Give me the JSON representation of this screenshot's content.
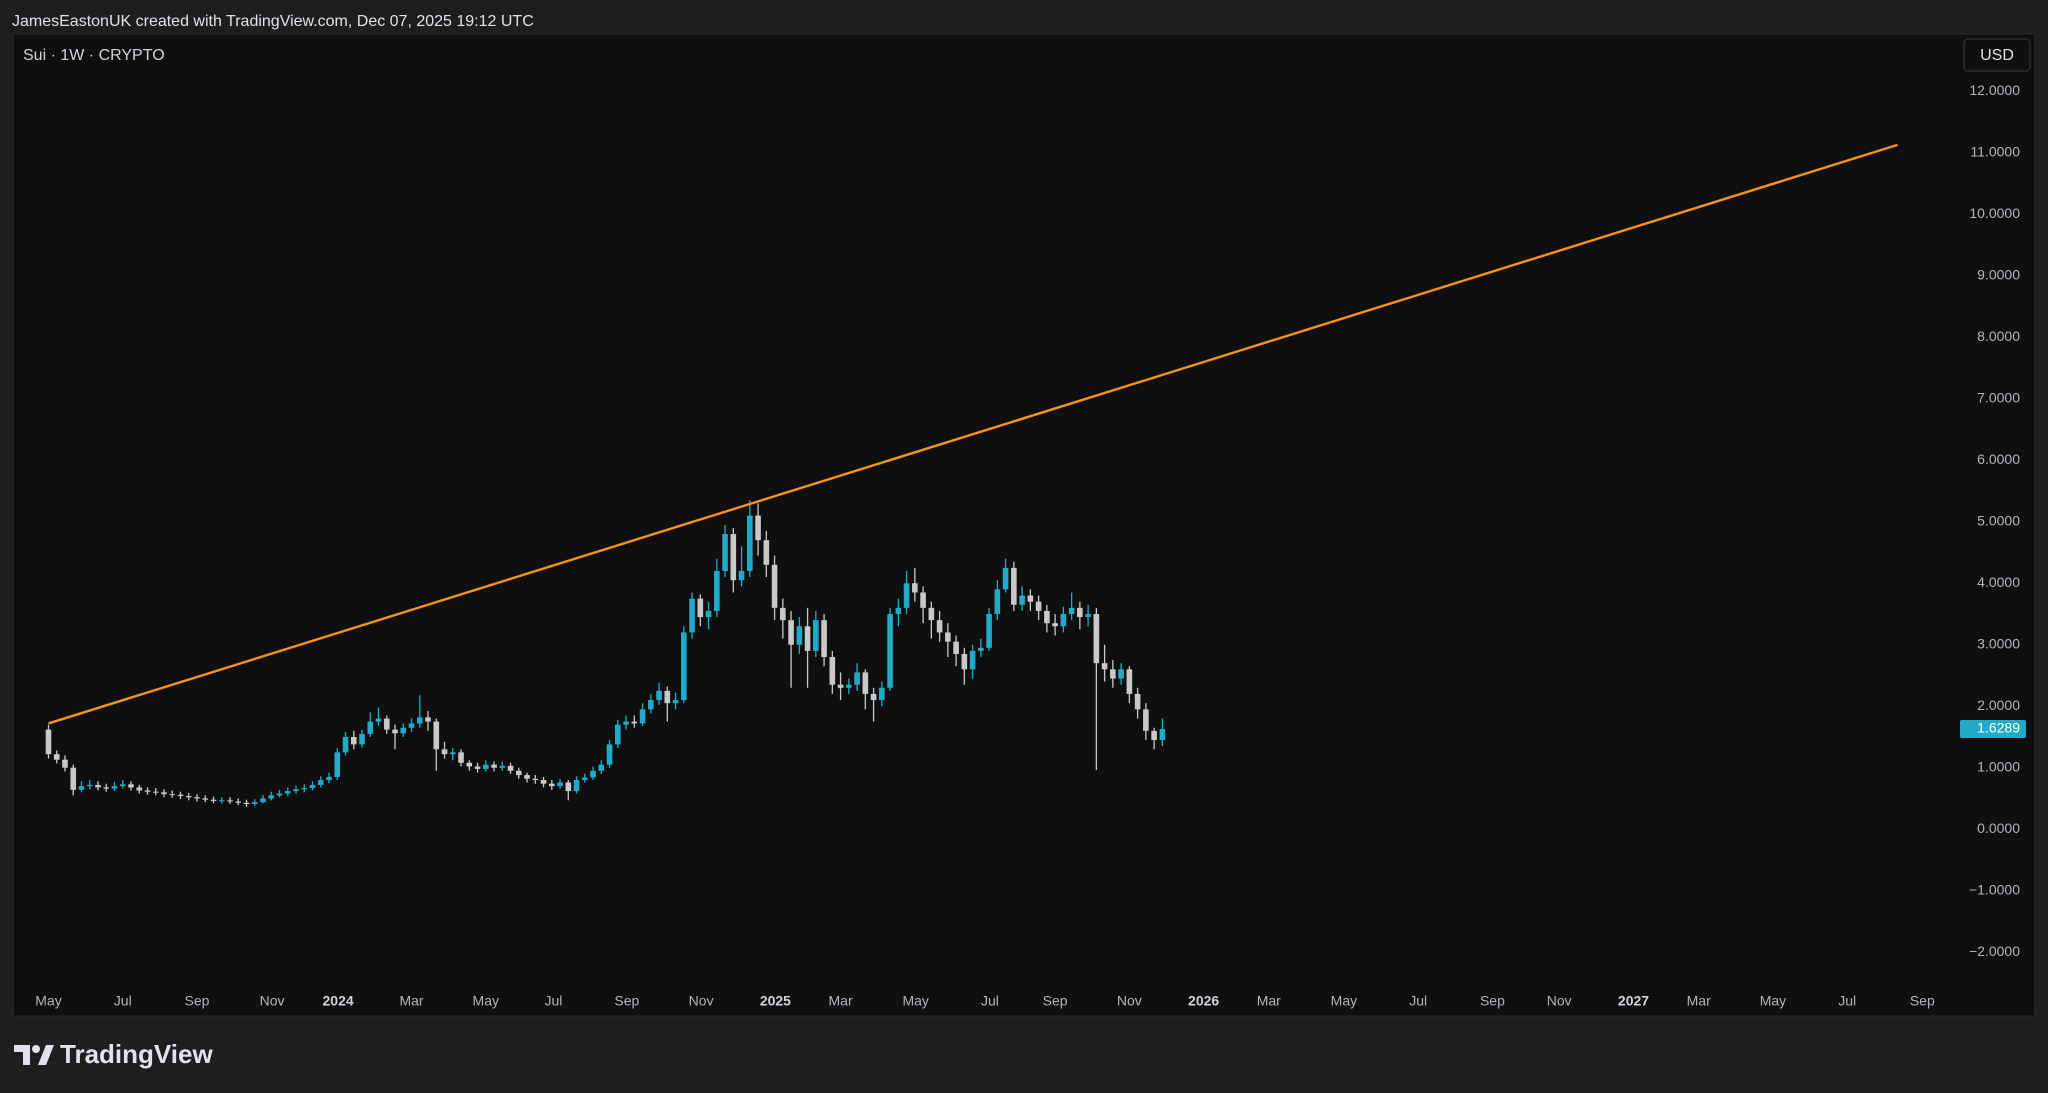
{
  "header": "JamesEastonUK created with TradingView.com, Dec 07, 2025 19:12 UTC",
  "footer": {
    "brand": "TradingView"
  },
  "chart_data": {
    "type": "candlestick",
    "title": "Sui · 1W · CRYPTO",
    "currency": "USD",
    "up_color": "#22abc9",
    "down_color": "#c9c9c9",
    "open": [
      1.62,
      1.22,
      1.13,
      1.0,
      0.64,
      0.7,
      0.72,
      0.68,
      0.66,
      0.7,
      0.73,
      0.68,
      0.63,
      0.61,
      0.6,
      0.57,
      0.56,
      0.54,
      0.52,
      0.5,
      0.48,
      0.46,
      0.47,
      0.45,
      0.43,
      0.41,
      0.44,
      0.5,
      0.55,
      0.58,
      0.62,
      0.65,
      0.67,
      0.72,
      0.8,
      0.85,
      1.25,
      1.5,
      1.38,
      1.55,
      1.75,
      1.8,
      1.62,
      1.56,
      1.65,
      1.72,
      1.82,
      1.75,
      1.3,
      1.22,
      1.25,
      1.08,
      1.02,
      0.98,
      1.05,
      1.0,
      1.03,
      0.95,
      0.88,
      0.82,
      0.8,
      0.74,
      0.7,
      0.76,
      0.62,
      0.8,
      0.84,
      0.95,
      1.05,
      1.38,
      1.7,
      1.75,
      1.72,
      1.95,
      2.1,
      2.25,
      2.05,
      2.1,
      3.2,
      3.75,
      3.45,
      3.55,
      4.2,
      4.8,
      4.05,
      4.2,
      5.1,
      4.7,
      4.3,
      3.6,
      3.4,
      3.0,
      3.3,
      2.9,
      3.4,
      2.8,
      2.35,
      2.3,
      2.35,
      2.55,
      2.2,
      2.1,
      2.3,
      3.5,
      3.6,
      4.0,
      3.85,
      3.6,
      3.4,
      3.2,
      3.05,
      2.85,
      2.6,
      2.9,
      2.95,
      3.5,
      3.9,
      4.25,
      3.65,
      3.8,
      3.7,
      3.55,
      3.35,
      3.3,
      3.5,
      3.6,
      3.45,
      3.5,
      2.7,
      2.6,
      2.45,
      2.6,
      2.2,
      1.95,
      1.6,
      1.45
    ],
    "high": [
      1.7,
      1.28,
      1.2,
      1.05,
      0.78,
      0.8,
      0.78,
      0.74,
      0.77,
      0.8,
      0.78,
      0.72,
      0.68,
      0.67,
      0.65,
      0.63,
      0.61,
      0.59,
      0.57,
      0.55,
      0.53,
      0.52,
      0.52,
      0.5,
      0.48,
      0.49,
      0.56,
      0.61,
      0.64,
      0.68,
      0.71,
      0.73,
      0.78,
      0.86,
      0.92,
      1.32,
      1.58,
      1.6,
      1.62,
      1.9,
      1.98,
      1.85,
      1.7,
      1.72,
      1.8,
      2.18,
      1.92,
      1.8,
      1.42,
      1.32,
      1.3,
      1.12,
      1.08,
      1.12,
      1.1,
      1.1,
      1.08,
      1.0,
      0.92,
      0.88,
      0.85,
      0.8,
      0.82,
      0.8,
      0.86,
      0.9,
      1.02,
      1.12,
      1.45,
      1.78,
      1.85,
      1.85,
      2.05,
      2.2,
      2.38,
      2.32,
      2.22,
      3.3,
      3.85,
      3.82,
      3.7,
      4.4,
      4.95,
      4.9,
      4.6,
      5.35,
      5.3,
      4.85,
      4.45,
      3.75,
      3.55,
      3.45,
      3.6,
      3.55,
      3.5,
      2.9,
      2.55,
      2.45,
      2.7,
      2.6,
      2.3,
      2.4,
      3.6,
      3.75,
      4.2,
      4.25,
      3.95,
      3.7,
      3.55,
      3.35,
      3.15,
      2.95,
      3.0,
      3.1,
      3.6,
      4.05,
      4.4,
      4.35,
      3.95,
      3.9,
      3.8,
      3.65,
      3.5,
      3.62,
      3.85,
      3.7,
      3.65,
      3.6,
      3.0,
      2.75,
      2.7,
      2.65,
      2.3,
      2.05,
      1.65,
      1.8
    ],
    "low": [
      1.15,
      1.07,
      0.94,
      0.55,
      0.6,
      0.65,
      0.63,
      0.61,
      0.62,
      0.66,
      0.63,
      0.58,
      0.56,
      0.55,
      0.52,
      0.51,
      0.49,
      0.47,
      0.45,
      0.44,
      0.42,
      0.42,
      0.41,
      0.39,
      0.36,
      0.38,
      0.42,
      0.47,
      0.52,
      0.54,
      0.58,
      0.6,
      0.63,
      0.68,
      0.75,
      0.8,
      1.2,
      1.3,
      1.33,
      1.5,
      1.68,
      1.55,
      1.3,
      1.5,
      1.58,
      1.65,
      1.6,
      0.95,
      1.15,
      1.12,
      1.02,
      0.95,
      0.92,
      0.94,
      0.94,
      0.95,
      0.9,
      0.82,
      0.76,
      0.74,
      0.68,
      0.64,
      0.66,
      0.47,
      0.58,
      0.76,
      0.8,
      0.9,
      1.0,
      1.32,
      1.62,
      1.65,
      1.68,
      1.88,
      2.02,
      1.75,
      1.95,
      2.05,
      3.1,
      3.3,
      3.25,
      3.45,
      4.1,
      3.85,
      3.95,
      4.1,
      4.45,
      4.1,
      3.4,
      3.1,
      2.3,
      2.85,
      2.3,
      2.8,
      2.65,
      2.2,
      2.1,
      2.2,
      2.25,
      1.95,
      1.75,
      2.0,
      2.25,
      3.3,
      3.5,
      3.7,
      3.35,
      3.1,
      3.05,
      2.8,
      2.65,
      2.35,
      2.45,
      2.8,
      2.9,
      3.4,
      3.85,
      3.55,
      3.55,
      3.55,
      3.4,
      3.2,
      3.15,
      3.2,
      3.4,
      3.25,
      3.3,
      0.96,
      2.4,
      2.3,
      2.35,
      2.05,
      1.8,
      1.45,
      1.3,
      1.35
    ],
    "close": [
      1.22,
      1.13,
      1.0,
      0.64,
      0.7,
      0.72,
      0.68,
      0.66,
      0.7,
      0.73,
      0.68,
      0.63,
      0.61,
      0.6,
      0.57,
      0.56,
      0.54,
      0.52,
      0.5,
      0.48,
      0.46,
      0.47,
      0.45,
      0.43,
      0.41,
      0.44,
      0.5,
      0.55,
      0.58,
      0.62,
      0.65,
      0.67,
      0.72,
      0.8,
      0.85,
      1.25,
      1.5,
      1.38,
      1.55,
      1.75,
      1.8,
      1.62,
      1.56,
      1.65,
      1.72,
      1.82,
      1.75,
      1.3,
      1.22,
      1.25,
      1.08,
      1.02,
      0.98,
      1.05,
      1.0,
      1.03,
      0.95,
      0.88,
      0.82,
      0.8,
      0.74,
      0.7,
      0.76,
      0.62,
      0.8,
      0.84,
      0.95,
      1.05,
      1.38,
      1.7,
      1.75,
      1.72,
      1.95,
      2.1,
      2.25,
      2.05,
      2.1,
      3.2,
      3.75,
      3.45,
      3.55,
      4.2,
      4.8,
      4.05,
      4.2,
      5.1,
      4.7,
      4.3,
      3.6,
      3.4,
      3.0,
      3.3,
      2.9,
      3.4,
      2.8,
      2.35,
      2.3,
      2.35,
      2.55,
      2.2,
      2.1,
      2.3,
      3.5,
      3.6,
      4.0,
      3.85,
      3.6,
      3.4,
      3.2,
      3.05,
      2.85,
      2.6,
      2.9,
      2.95,
      3.5,
      3.9,
      4.25,
      3.65,
      3.8,
      3.7,
      3.55,
      3.35,
      3.3,
      3.5,
      3.6,
      3.45,
      3.5,
      2.7,
      2.6,
      2.45,
      2.6,
      2.2,
      1.95,
      1.6,
      1.45,
      1.6289
    ],
    "last_price": 1.6289,
    "trendline": {
      "x": [
        0,
        224.1
      ],
      "y": [
        1.72,
        11.13
      ],
      "color": "#f7931a"
    },
    "xlim": [
      -4.3,
      230.7
    ],
    "ylim": [
      -2.55,
      12.77
    ],
    "yticks": [
      {
        "value": 12,
        "label": "12.0000"
      },
      {
        "value": 11,
        "label": "11.0000"
      },
      {
        "value": 10,
        "label": "10.0000"
      },
      {
        "value": 9,
        "label": "9.0000"
      },
      {
        "value": 8,
        "label": "8.0000"
      },
      {
        "value": 7,
        "label": "7.0000"
      },
      {
        "value": 6,
        "label": "6.0000"
      },
      {
        "value": 5,
        "label": "5.0000"
      },
      {
        "value": 4,
        "label": "4.0000"
      },
      {
        "value": 3,
        "label": "3.0000"
      },
      {
        "value": 2,
        "label": "2.0000"
      },
      {
        "value": 1,
        "label": "1.0000"
      },
      {
        "value": 0,
        "label": "0.0000"
      },
      {
        "value": -1,
        "label": "−1.0000"
      },
      {
        "value": -2,
        "label": "−2.0000"
      }
    ],
    "xticks": [
      {
        "value": 0,
        "label": "May"
      },
      {
        "value": 9.0,
        "label": "Jul"
      },
      {
        "value": 18.0,
        "label": "Sep"
      },
      {
        "value": 27.1,
        "label": "Nov"
      },
      {
        "value": 35.1,
        "label": "2024"
      },
      {
        "value": 44.0,
        "label": "Mar"
      },
      {
        "value": 53.0,
        "label": "May"
      },
      {
        "value": 61.2,
        "label": "Jul"
      },
      {
        "value": 70.1,
        "label": "Sep"
      },
      {
        "value": 79.1,
        "label": "Nov"
      },
      {
        "value": 88.1,
        "label": "2025"
      },
      {
        "value": 96.0,
        "label": "Mar"
      },
      {
        "value": 105.1,
        "label": "May"
      },
      {
        "value": 114.1,
        "label": "Jul"
      },
      {
        "value": 122.0,
        "label": "Sep"
      },
      {
        "value": 131.0,
        "label": "Nov"
      },
      {
        "value": 140.0,
        "label": "2026"
      },
      {
        "value": 147.9,
        "label": "Mar"
      },
      {
        "value": 157.0,
        "label": "May"
      },
      {
        "value": 166.0,
        "label": "Jul"
      },
      {
        "value": 175.0,
        "label": "Sep"
      },
      {
        "value": 183.1,
        "label": "Nov"
      },
      {
        "value": 192.1,
        "label": "2027"
      },
      {
        "value": 200.0,
        "label": "Mar"
      },
      {
        "value": 209.0,
        "label": "May"
      },
      {
        "value": 218.0,
        "label": "Jul"
      },
      {
        "value": 227.1,
        "label": "Sep"
      }
    ]
  }
}
